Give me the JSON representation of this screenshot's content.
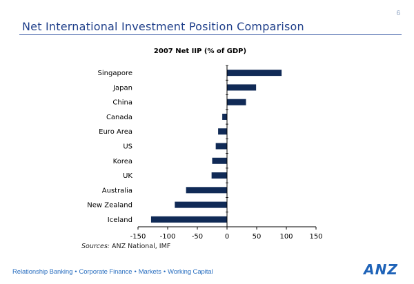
{
  "slide": {
    "title": "Net International Investment Position Comparison",
    "page_number": "6"
  },
  "chart_data": {
    "type": "bar",
    "orientation": "horizontal",
    "title": "2007 Net IIP (% of GDP)",
    "categories": [
      "Singapore",
      "Japan",
      "China",
      "Canada",
      "Euro Area",
      "US",
      "Korea",
      "UK",
      "Australia",
      "New Zealand",
      "Iceland"
    ],
    "values": [
      92,
      49,
      32,
      -8,
      -15,
      -19,
      -25,
      -26,
      -69,
      -88,
      -128
    ],
    "xlim": [
      -150,
      150
    ],
    "xticks": [
      -150,
      -100,
      -50,
      0,
      50,
      100,
      150
    ],
    "xlabel": "",
    "ylabel": "",
    "grid": false,
    "bar_color": "#102a56"
  },
  "sources": {
    "label": "Sources:",
    "text": "ANZ National, IMF"
  },
  "footer": {
    "tagline_items": [
      "Relationship Banking",
      "Corporate Finance",
      "Markets",
      "Working Capital"
    ],
    "separator": "•",
    "logo_text": "ANZ"
  },
  "colors": {
    "title": "#1f3f8a",
    "footer": "#2a6fc0",
    "bars": "#102a56",
    "logo": "#1f63b8"
  }
}
